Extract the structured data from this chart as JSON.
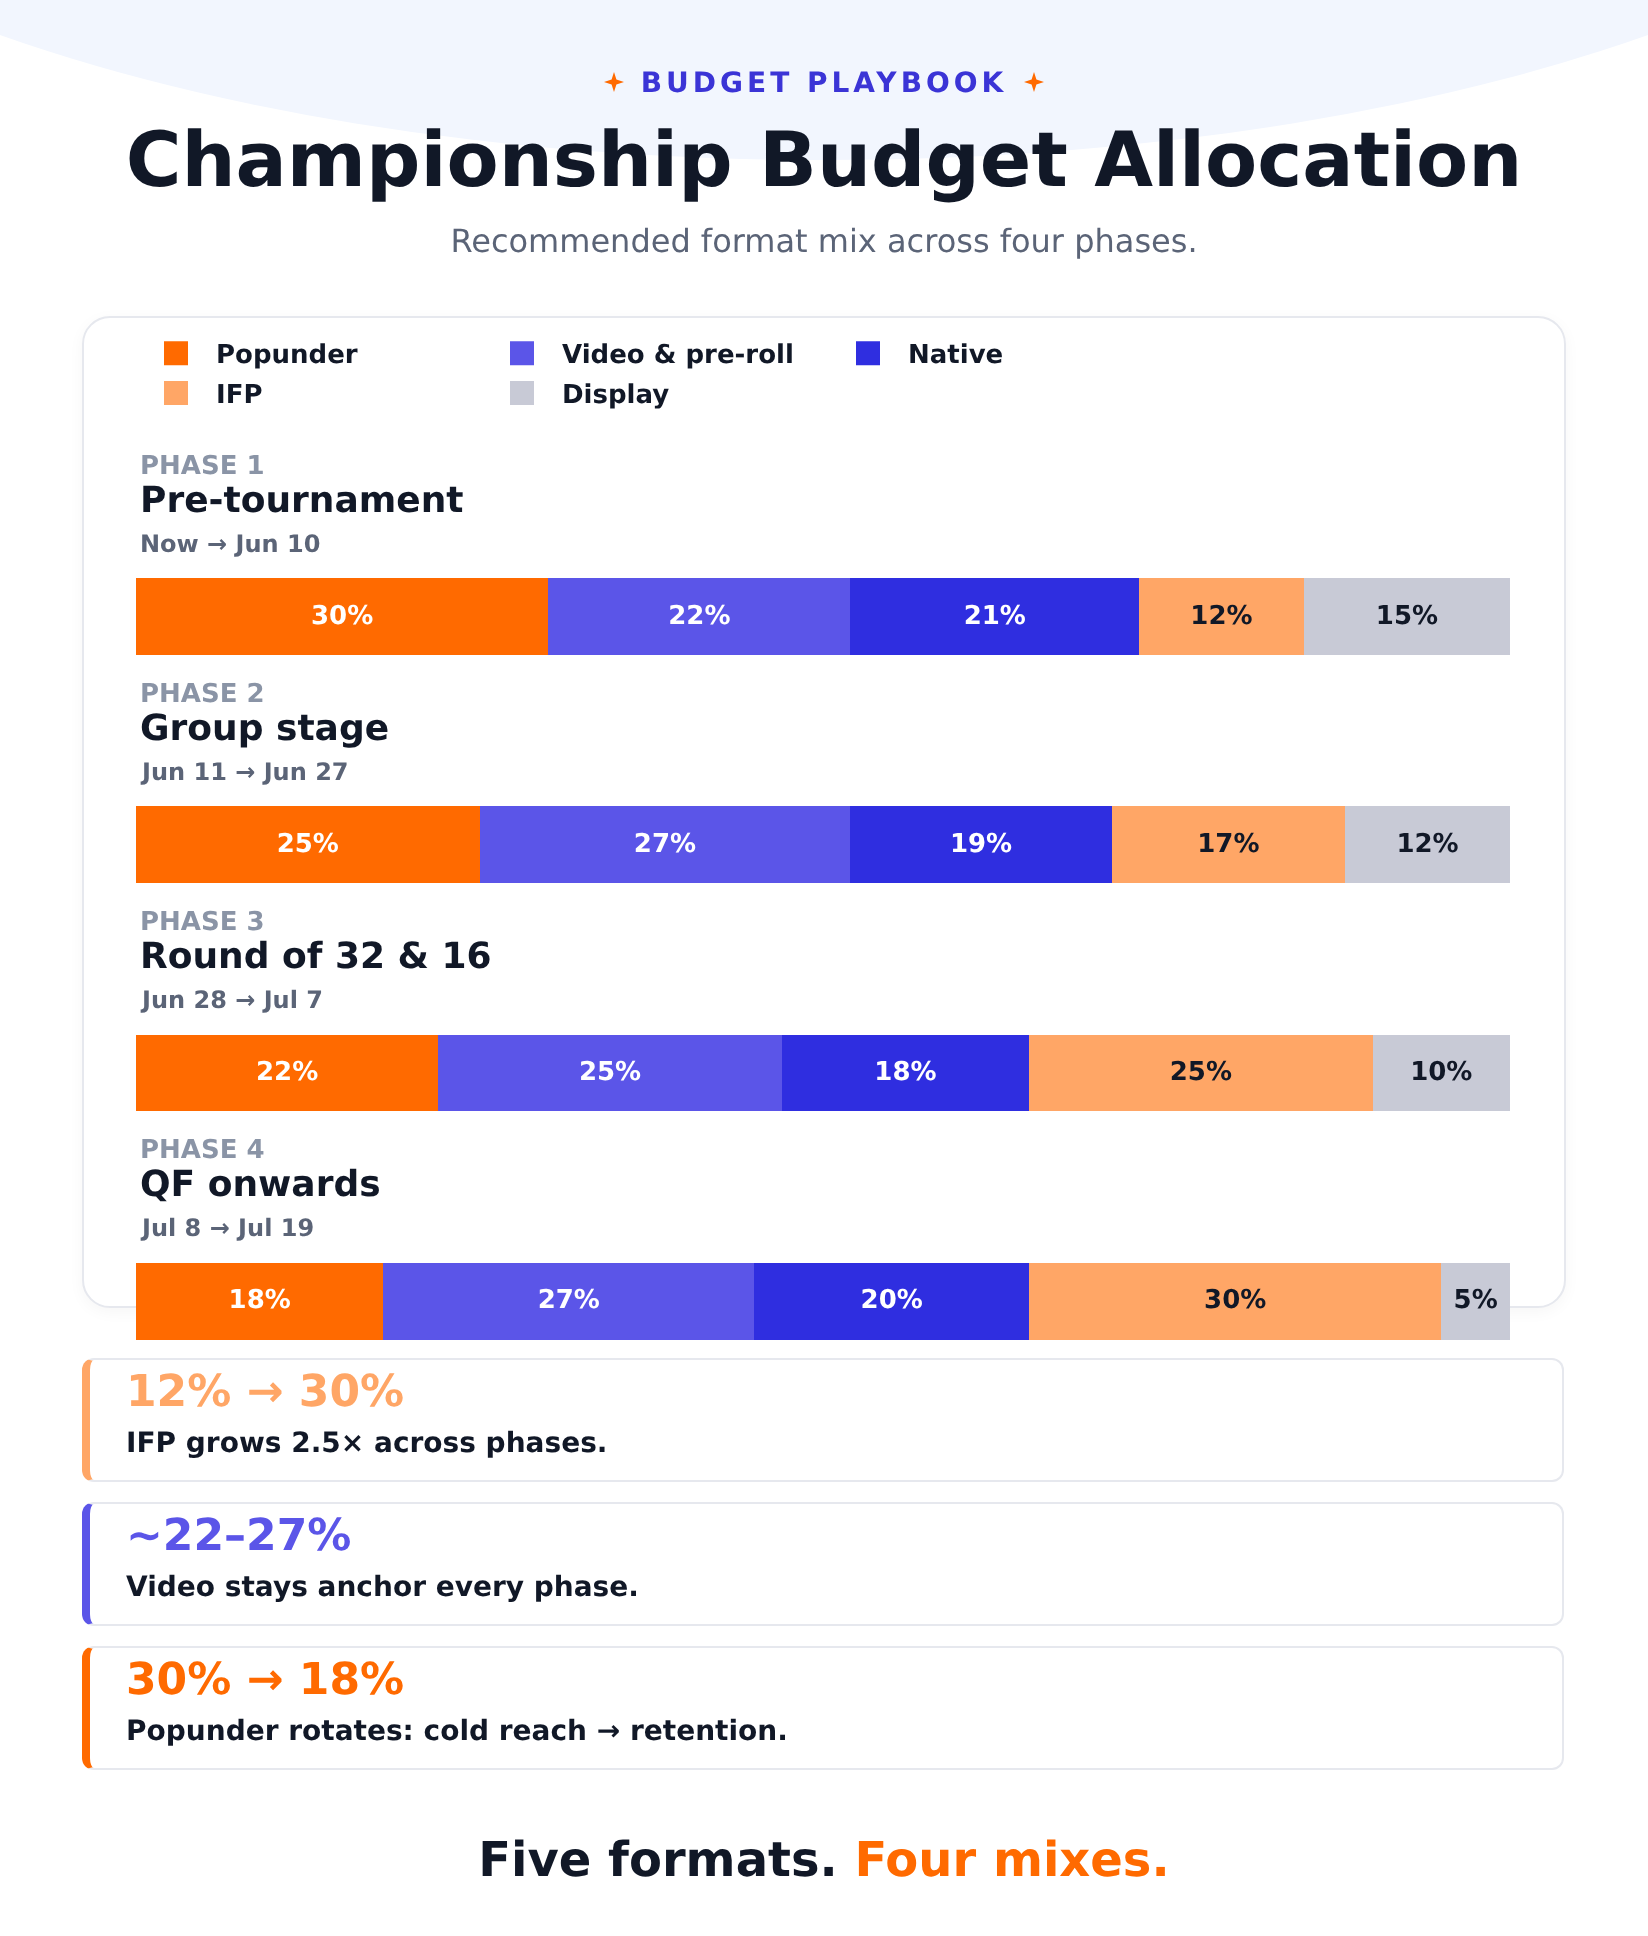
{
  "chart_data": {
    "type": "bar",
    "orientation": "horizontal",
    "stacked": true,
    "title": "Championship Budget Allocation",
    "subtitle": "Recommended format mix across four phases.",
    "categories": [
      "PHASE 1\nPre-tournament\nNow → Jun 10",
      "PHASE 2\nGroup stage\nJun 11 → Jun 27",
      "PHASE 3\nRound of 32 & 16\nJun 28 → Jul 7",
      "PHASE 4\nQF onwards\nJul 8 → Jul 19"
    ],
    "series": [
      {
        "name": "Popunder",
        "color": "#ff6a00",
        "values": [
          30,
          25,
          22,
          18
        ],
        "value_labels": [
          "30%",
          "25%",
          "22%",
          "18%"
        ]
      },
      {
        "name": "Video & pre-roll",
        "color": "#5b55e8",
        "values": [
          22,
          27,
          25,
          27
        ],
        "value_labels": [
          "22%",
          "27%",
          "25%",
          "27%"
        ]
      },
      {
        "name": "Native",
        "color": "#2f2ee0",
        "values": [
          21,
          19,
          18,
          20
        ],
        "value_labels": [
          "21%",
          "19%",
          "18%",
          "20%"
        ]
      },
      {
        "name": "IFP",
        "color": "#ffa666",
        "values": [
          12,
          17,
          25,
          30
        ],
        "value_labels": [
          "12%",
          "17%",
          "25%",
          "30%"
        ]
      },
      {
        "name": "Display",
        "color": "#c8cad6",
        "values": [
          15,
          12,
          10,
          5
        ],
        "value_labels": [
          "15%",
          "12%",
          "10%",
          "5%"
        ]
      }
    ],
    "xlim": [
      0,
      100
    ],
    "legend": "top",
    "tick_labels": false,
    "annotations": [
      "BUDGET PLAYBOOK",
      "12% → 30%",
      "IFP grows 2.5× across phases.",
      "~22–27%",
      "Video stays anchor every phase.",
      "30% → 18%",
      "Popunder rotates: cold reach → retention.",
      "Five formats.",
      "Four mixes."
    ]
  }
}
